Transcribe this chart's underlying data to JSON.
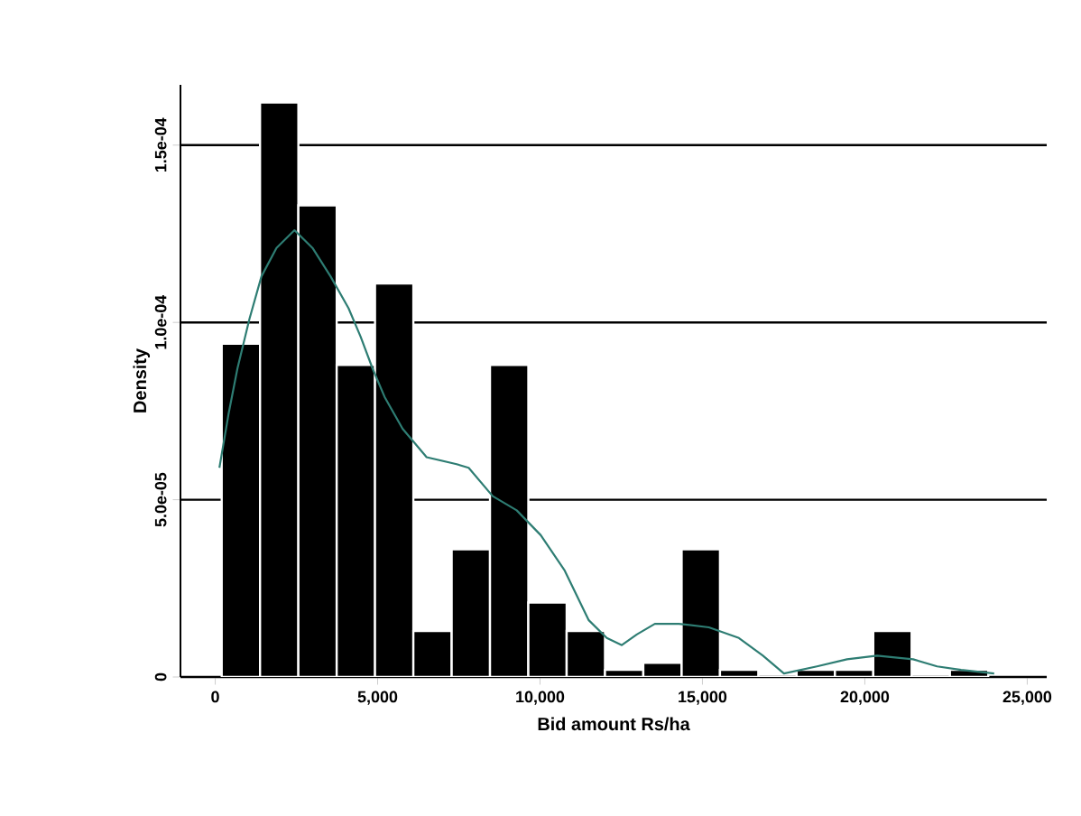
{
  "chart_data": {
    "type": "histogram",
    "xlabel": "Bid amount Rs/ha",
    "ylabel": "Density",
    "xlim": [
      -1070,
      25600
    ],
    "ylim": [
      0,
      0.000167
    ],
    "xticks": [
      0,
      {
        "value": 5000,
        "label": "5,000"
      },
      {
        "value": 10000,
        "label": "10,000"
      },
      {
        "value": 15000,
        "label": "15,000"
      },
      {
        "value": 20000,
        "label": "20,000"
      },
      {
        "value": 25000,
        "label": "25,000"
      }
    ],
    "yticks": [
      0,
      {
        "value": 5e-05,
        "label": "5.0e-05"
      },
      {
        "value": 0.0001,
        "label": "1.0e-04"
      },
      {
        "value": 0.00015,
        "label": "1.5e-04"
      }
    ],
    "grid": "y",
    "series": [
      {
        "color": "#000000",
        "bins": [
          200,
          1380,
          2560,
          3740,
          4920,
          6100,
          7280,
          8460,
          9640,
          10820,
          12000,
          13180,
          14360,
          15540,
          16720,
          17900,
          19080,
          20260,
          21440,
          22620,
          23800
        ],
        "values": [
          9.4e-05,
          0.000162,
          0.000133,
          8.8e-05,
          0.000111,
          1.3e-05,
          3.6e-05,
          8.8e-05,
          2.1e-05,
          1.3e-05,
          2e-06,
          4e-06,
          3.6e-05,
          2e-06,
          0,
          2e-06,
          2e-06,
          1.3e-05,
          0,
          2e-06
        ]
      },
      {
        "type": "line",
        "color": "#2e7d73",
        "x": [
          129,
          407,
          684,
          1054,
          1424,
          1886,
          2441,
          2995,
          3550,
          4105,
          4475,
          4844,
          5214,
          5769,
          6508,
          7433,
          7803,
          8542,
          9282,
          10022,
          10761,
          11501,
          12055,
          12518,
          12980,
          13535,
          14274,
          15199,
          16123,
          16863,
          17510,
          18527,
          19451,
          20376,
          21485,
          22225,
          22965,
          23982
        ],
        "values": [
          5.9e-05,
          7.4e-05,
          8.7e-05,
          0.000101,
          0.000113,
          0.000121,
          0.000126,
          0.000121,
          0.000113,
          0.000104,
          9.6e-05,
          8.7e-05,
          7.9e-05,
          7e-05,
          6.2e-05,
          6e-05,
          5.9e-05,
          5.1e-05,
          4.7e-05,
          4e-05,
          3e-05,
          1.6e-05,
          1.1e-05,
          9e-06,
          1.2e-05,
          1.5e-05,
          1.5e-05,
          1.4e-05,
          1.1e-05,
          6e-06,
          1e-06,
          3e-06,
          5e-06,
          6e-06,
          5e-06,
          3e-06,
          2e-06,
          1e-06
        ]
      }
    ]
  }
}
